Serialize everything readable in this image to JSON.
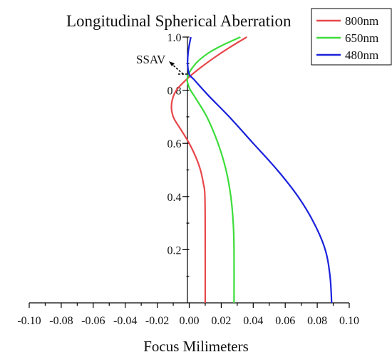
{
  "chart_data": {
    "type": "line",
    "title": "Longitudinal Spherical Aberration",
    "xlabel": "Focus Milimeters",
    "ylabel": "",
    "xlim": [
      -0.1,
      0.1
    ],
    "ylim": [
      0.0,
      1.0
    ],
    "x_ticks": [
      "-0.10",
      "-0.08",
      "-0.06",
      "-0.04",
      "-0.02",
      "0.00",
      "0.02",
      "0.04",
      "0.06",
      "0.08",
      "0.10"
    ],
    "y_ticks": [
      "0.2",
      "0.4",
      "0.6",
      "0.8",
      "1.0"
    ],
    "legend_position": "top-right",
    "annotation": {
      "text": "SSAV",
      "points_to": [
        0.0,
        0.86
      ]
    },
    "series": [
      {
        "name": "800nm",
        "color": "#e8474b",
        "points": [
          [
            0.01,
            0.0
          ],
          [
            0.01,
            0.2
          ],
          [
            0.0098,
            0.4
          ],
          [
            0.0088,
            0.45
          ],
          [
            0.007,
            0.5
          ],
          [
            0.004,
            0.55
          ],
          [
            0.0,
            0.6
          ],
          [
            -0.005,
            0.65
          ],
          [
            -0.01,
            0.7
          ],
          [
            -0.011,
            0.75
          ],
          [
            -0.008,
            0.8
          ],
          [
            0.0,
            0.85
          ],
          [
            0.006,
            0.88
          ],
          [
            0.015,
            0.92
          ],
          [
            0.025,
            0.96
          ],
          [
            0.036,
            1.0
          ]
        ]
      },
      {
        "name": "650nm",
        "color": "#3ddc3a",
        "points": [
          [
            0.028,
            0.0
          ],
          [
            0.028,
            0.2
          ],
          [
            0.0275,
            0.3
          ],
          [
            0.026,
            0.4
          ],
          [
            0.023,
            0.5
          ],
          [
            0.018,
            0.6
          ],
          [
            0.011,
            0.7
          ],
          [
            0.004,
            0.77
          ],
          [
            0.0,
            0.81
          ],
          [
            -0.001,
            0.85
          ],
          [
            0.004,
            0.9
          ],
          [
            0.012,
            0.94
          ],
          [
            0.021,
            0.97
          ],
          [
            0.032,
            1.0
          ]
        ]
      },
      {
        "name": "480nm",
        "color": "#1a22dc",
        "points": [
          [
            0.089,
            0.0
          ],
          [
            0.088,
            0.1
          ],
          [
            0.085,
            0.2
          ],
          [
            0.078,
            0.3
          ],
          [
            0.068,
            0.4
          ],
          [
            0.055,
            0.5
          ],
          [
            0.04,
            0.6
          ],
          [
            0.025,
            0.7
          ],
          [
            0.012,
            0.78
          ],
          [
            0.003,
            0.84
          ],
          [
            0.0,
            0.86
          ],
          [
            -0.001,
            0.9
          ],
          [
            -0.0005,
            0.95
          ],
          [
            0.001,
            1.0
          ]
        ]
      }
    ]
  }
}
